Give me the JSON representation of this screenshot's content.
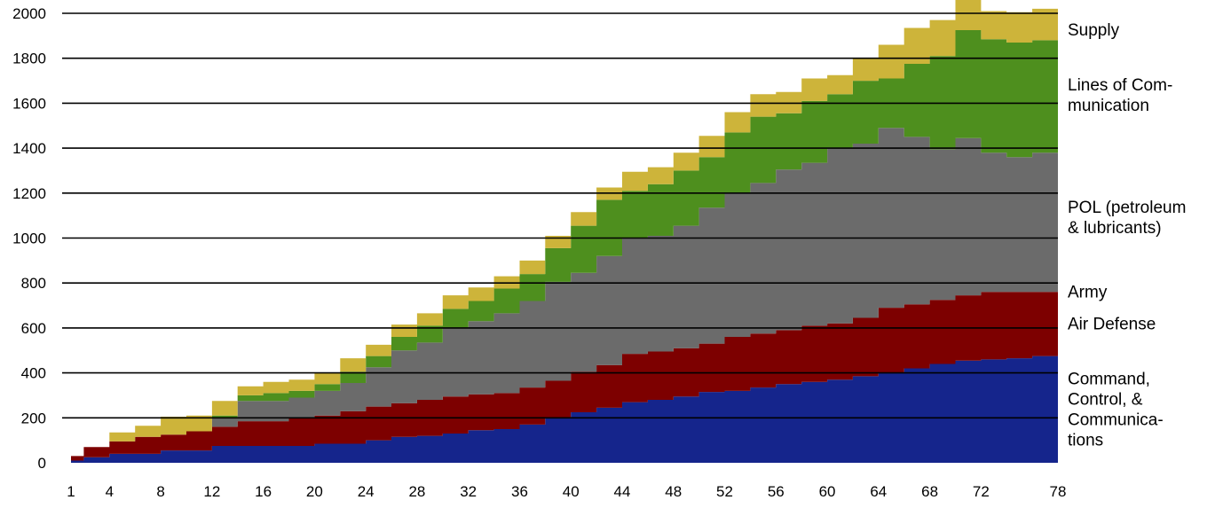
{
  "chart_data": {
    "type": "area",
    "stacked": true,
    "title": "",
    "xlabel": "",
    "ylabel": "",
    "ylim": [
      0,
      2000
    ],
    "xlim": [
      1,
      78
    ],
    "grid": true,
    "legend_position": "right",
    "x_ticks": [
      1,
      4,
      8,
      12,
      16,
      20,
      24,
      28,
      32,
      36,
      40,
      44,
      48,
      52,
      56,
      60,
      64,
      68,
      72,
      78
    ],
    "y_ticks": [
      0,
      200,
      400,
      600,
      800,
      1000,
      1200,
      1400,
      1600,
      1800,
      2000
    ],
    "x": [
      1,
      2,
      4,
      6,
      8,
      10,
      12,
      14,
      16,
      18,
      20,
      22,
      24,
      26,
      28,
      30,
      32,
      34,
      36,
      38,
      40,
      42,
      44,
      46,
      48,
      50,
      52,
      54,
      56,
      58,
      60,
      62,
      64,
      66,
      68,
      70,
      72,
      74,
      76,
      78
    ],
    "series": [
      {
        "name": "Command, Control, & Communications",
        "color": "#15258c",
        "values": [
          10,
          25,
          40,
          40,
          55,
          55,
          75,
          75,
          75,
          75,
          85,
          85,
          100,
          115,
          120,
          130,
          145,
          150,
          170,
          200,
          225,
          245,
          270,
          280,
          295,
          315,
          320,
          335,
          350,
          360,
          370,
          385,
          400,
          420,
          440,
          455,
          460,
          465,
          475,
          475
        ]
      },
      {
        "name": "Air Defense",
        "color": "#7d0000",
        "values": [
          20,
          45,
          55,
          75,
          70,
          85,
          85,
          110,
          110,
          125,
          125,
          145,
          150,
          150,
          160,
          165,
          160,
          160,
          165,
          165,
          180,
          190,
          215,
          215,
          215,
          215,
          240,
          240,
          240,
          250,
          250,
          260,
          290,
          285,
          285,
          290,
          300,
          295,
          285,
          285
        ]
      },
      {
        "name": "Army",
        "color": "#ffffff",
        "values": [
          0,
          0,
          0,
          0,
          0,
          0,
          0,
          0,
          0,
          0,
          0,
          0,
          0,
          0,
          0,
          0,
          0,
          0,
          0,
          0,
          0,
          0,
          0,
          0,
          0,
          0,
          0,
          0,
          0,
          0,
          0,
          0,
          0,
          0,
          0,
          0,
          0,
          0,
          0,
          0
        ]
      },
      {
        "name": "POL (petroleum & lubricants)",
        "color": "#6b6b6b",
        "values": [
          0,
          0,
          0,
          0,
          0,
          0,
          40,
          90,
          90,
          90,
          110,
          125,
          175,
          235,
          255,
          305,
          325,
          355,
          385,
          440,
          440,
          485,
          515,
          515,
          545,
          605,
          640,
          670,
          715,
          725,
          780,
          775,
          800,
          745,
          670,
          700,
          620,
          600,
          620,
          660
        ]
      },
      {
        "name": "Lines of Communication",
        "color": "#4e8f1e",
        "values": [
          0,
          0,
          0,
          0,
          0,
          0,
          10,
          25,
          35,
          30,
          30,
          50,
          50,
          60,
          75,
          85,
          90,
          110,
          120,
          150,
          210,
          250,
          210,
          230,
          245,
          225,
          270,
          295,
          250,
          275,
          240,
          280,
          220,
          325,
          415,
          480,
          505,
          510,
          500,
          430
        ]
      },
      {
        "name": "Supply",
        "color": "#cdb43a",
        "values": [
          0,
          0,
          40,
          50,
          80,
          70,
          65,
          40,
          50,
          50,
          50,
          60,
          50,
          55,
          55,
          60,
          60,
          55,
          60,
          55,
          60,
          55,
          85,
          75,
          80,
          95,
          90,
          100,
          95,
          100,
          85,
          100,
          150,
          160,
          160,
          165,
          125,
          135,
          140,
          150
        ]
      }
    ],
    "legend_labels": [
      {
        "series": "Supply",
        "lines": [
          "Supply"
        ]
      },
      {
        "series": "Lines of Communication",
        "lines": [
          "Lines of Com-",
          "munication"
        ]
      },
      {
        "series": "POL (petroleum & lubricants)",
        "lines": [
          "POL (petroleum",
          "& lubricants)"
        ]
      },
      {
        "series": "Army",
        "lines": [
          "Army"
        ]
      },
      {
        "series": "Air Defense",
        "lines": [
          "Air Defense"
        ]
      },
      {
        "series": "Command, Control, & Communications",
        "lines": [
          "Command,",
          "Control, &",
          "Communica-",
          "tions"
        ]
      }
    ]
  }
}
